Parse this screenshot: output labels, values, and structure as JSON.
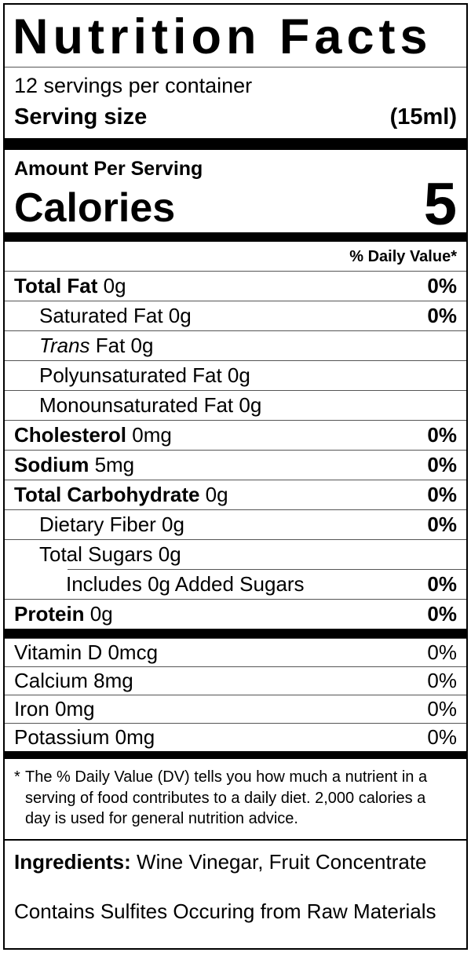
{
  "label": {
    "title": "Nutrition Facts",
    "servings_per_container": "12 servings per container",
    "serving_size_label": "Serving size",
    "serving_size_value": "(15ml)",
    "amount_per_serving": "Amount Per Serving",
    "calories_label": "Calories",
    "calories_value": "5",
    "daily_value_header": "% Daily Value*",
    "nutrient_rows": [
      {
        "segments": [
          {
            "text": "Total Fat",
            "bold": true
          },
          {
            "text": " 0g"
          }
        ],
        "dv": "0%",
        "indent": 0
      },
      {
        "segments": [
          {
            "text": "Saturated Fat 0g"
          }
        ],
        "dv": "0%",
        "indent": 1
      },
      {
        "segments": [
          {
            "text": "Trans",
            "italic": true
          },
          {
            "text": " Fat 0g"
          }
        ],
        "dv": "",
        "indent": 1
      },
      {
        "segments": [
          {
            "text": "Polyunsaturated Fat 0g"
          }
        ],
        "dv": "",
        "indent": 1
      },
      {
        "segments": [
          {
            "text": "Monounsaturated Fat 0g"
          }
        ],
        "dv": "",
        "indent": 1
      },
      {
        "segments": [
          {
            "text": "Cholesterol",
            "bold": true
          },
          {
            "text": " 0mg"
          }
        ],
        "dv": "0%",
        "indent": 0
      },
      {
        "segments": [
          {
            "text": "Sodium",
            "bold": true
          },
          {
            "text": " 5mg"
          }
        ],
        "dv": "0%",
        "indent": 0
      },
      {
        "segments": [
          {
            "text": "Total Carbohydrate",
            "bold": true
          },
          {
            "text": " 0g"
          }
        ],
        "dv": "0%",
        "indent": 0
      },
      {
        "segments": [
          {
            "text": "Dietary Fiber 0g"
          }
        ],
        "dv": "0%",
        "indent": 1
      },
      {
        "segments": [
          {
            "text": "Total Sugars 0g"
          }
        ],
        "dv": "",
        "indent": 1
      },
      {
        "segments": [
          {
            "text": "Includes 0g Added Sugars"
          }
        ],
        "dv": "0%",
        "indent": 2,
        "partial_rule": true
      },
      {
        "segments": [
          {
            "text": "Protein",
            "bold": true
          },
          {
            "text": " 0g"
          }
        ],
        "dv": "0%",
        "indent": 0
      }
    ],
    "vitamin_rows": [
      {
        "segments": [
          {
            "text": "Vitamin D 0mcg"
          }
        ],
        "dv": "0%"
      },
      {
        "segments": [
          {
            "text": "Calcium 8mg"
          }
        ],
        "dv": "0%"
      },
      {
        "segments": [
          {
            "text": "Iron 0mg"
          }
        ],
        "dv": "0%"
      },
      {
        "segments": [
          {
            "text": "Potassium 0mg"
          }
        ],
        "dv": "0%"
      }
    ],
    "footnote_marker": "*",
    "footnote": "The % Daily Value (DV) tells you how much a nutrient in a serving of food contributes to a daily diet. 2,000 calories a day is used for general nutrition advice.",
    "ingredients_label": "Ingredients:",
    "ingredients_value": "Wine Vinegar, Fruit Concentrate",
    "allergen_statement": "Contains Sulfites Occuring from Raw Materials"
  },
  "colors": {
    "text": "#000000",
    "background": "#ffffff",
    "bar": "#000000"
  }
}
